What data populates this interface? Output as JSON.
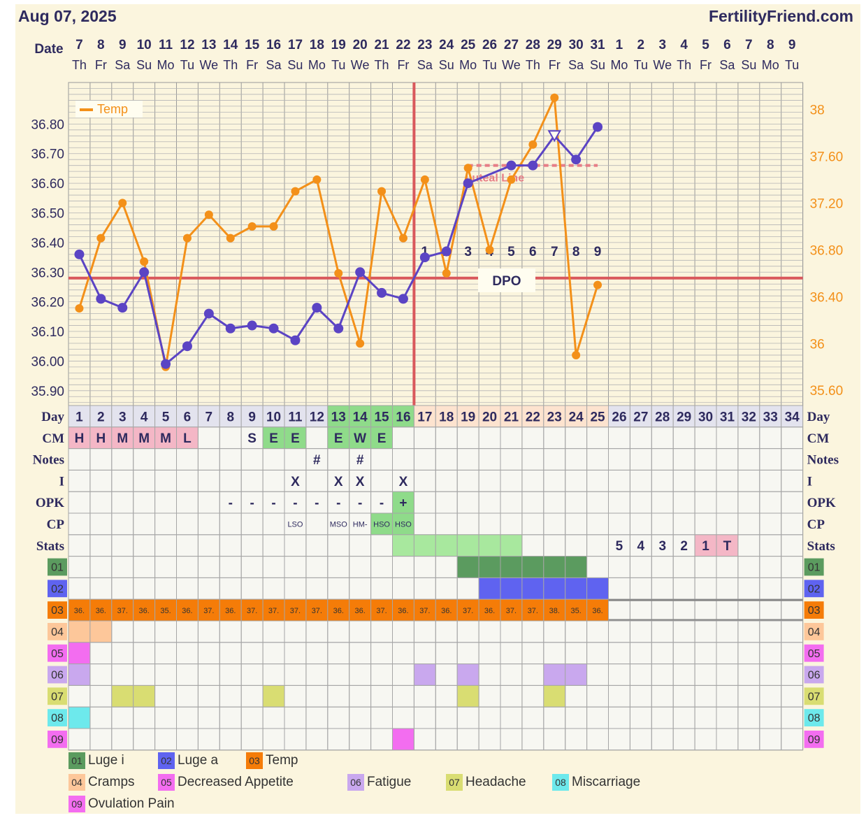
{
  "header": {
    "date": "Aug 07, 2025",
    "site": "FertilityFriend.com"
  },
  "labels": {
    "date": "Date",
    "day": "Day",
    "cm": "CM",
    "notes": "Notes",
    "i": "I",
    "opk": "OPK",
    "cp": "CP",
    "stats": "Stats",
    "dpo": "DPO",
    "coverline": "Luteal Line"
  },
  "dates": [
    "7",
    "8",
    "9",
    "10",
    "11",
    "12",
    "13",
    "14",
    "15",
    "16",
    "17",
    "18",
    "19",
    "20",
    "21",
    "22",
    "23",
    "24",
    "25",
    "26",
    "27",
    "28",
    "29",
    "30",
    "31",
    "1",
    "2",
    "3",
    "4",
    "5",
    "6",
    "7",
    "8",
    "9"
  ],
  "weekdays": [
    "Th",
    "Fr",
    "Sa",
    "Su",
    "Mo",
    "Tu",
    "We",
    "Th",
    "Fr",
    "Sa",
    "Su",
    "Mo",
    "Tu",
    "We",
    "Th",
    "Fr",
    "Sa",
    "Su",
    "Mo",
    "Tu",
    "We",
    "Th",
    "Fr",
    "Sa",
    "Su",
    "Mo",
    "Tu",
    "We",
    "Th",
    "Fr",
    "Sa",
    "Su",
    "Mo",
    "Tu"
  ],
  "chart_data": {
    "type": "line",
    "x_label": "Day",
    "x": [
      1,
      2,
      3,
      4,
      5,
      6,
      7,
      8,
      9,
      10,
      11,
      12,
      13,
      14,
      15,
      16,
      17,
      18,
      19,
      20,
      21,
      22,
      23,
      24,
      25
    ],
    "left_axis": {
      "ticks": [
        "36.80",
        "36.70",
        "36.60",
        "36.50",
        "36.40",
        "36.30",
        "36.20",
        "36.10",
        "36.00",
        "35.90"
      ],
      "ylim": [
        35.85,
        36.94
      ]
    },
    "right_axis": {
      "ticks": [
        "38",
        "37.60",
        "37.20",
        "36.80",
        "36.40",
        "36",
        "35.60"
      ],
      "ylim": [
        35.47,
        38.23
      ]
    },
    "series": [
      {
        "name": "Temp",
        "color": "#f39019",
        "axis": "right",
        "values": [
          36.3,
          36.9,
          37.2,
          36.7,
          35.8,
          36.9,
          37.1,
          36.9,
          37.0,
          37.0,
          37.3,
          37.4,
          36.6,
          36.0,
          37.3,
          36.9,
          37.4,
          36.6,
          37.5,
          36.8,
          37.4,
          37.7,
          38.1,
          35.9,
          36.5
        ]
      },
      {
        "color": "#5b44c4",
        "axis": "left",
        "values": [
          36.36,
          36.21,
          36.18,
          36.3,
          35.99,
          36.05,
          36.16,
          36.11,
          36.12,
          36.11,
          36.07,
          36.18,
          36.11,
          36.3,
          36.23,
          36.21,
          36.35,
          36.37,
          36.6,
          null,
          36.66,
          36.66,
          36.76,
          36.68,
          36.79
        ]
      }
    ],
    "open_marker_day": 23,
    "coverline": 36.28,
    "ovulation_day": 16,
    "luteal_line": {
      "value": 36.66,
      "from_day": 19,
      "to_day": 25
    },
    "dpo": [
      "1",
      "2",
      "3",
      "4",
      "5",
      "6",
      "7",
      "8",
      "9"
    ],
    "dpo_start_day": 17,
    "legend_position": "top-left"
  },
  "days": [
    "1",
    "2",
    "3",
    "4",
    "5",
    "6",
    "7",
    "8",
    "9",
    "10",
    "11",
    "12",
    "13",
    "14",
    "15",
    "16",
    "17",
    "18",
    "19",
    "20",
    "21",
    "22",
    "23",
    "24",
    "25",
    "26",
    "27",
    "28",
    "29",
    "30",
    "31",
    "32",
    "33",
    "34"
  ],
  "cm": {
    "1": "H",
    "2": "H",
    "3": "M",
    "4": "M",
    "5": "M",
    "6": "L",
    "9": "S",
    "10": "E",
    "11": "E",
    "13": "E",
    "14": "W",
    "15": "E"
  },
  "notes": {
    "12": "#",
    "14": "#"
  },
  "intercourse": {
    "11": "X",
    "13": "X",
    "14": "X",
    "16": "X"
  },
  "opk": {
    "8": "-",
    "9": "-",
    "10": "-",
    "11": "-",
    "12": "-",
    "13": "-",
    "14": "-",
    "15": "-",
    "16": "+"
  },
  "cp": {
    "11": "LSO",
    "13": "MSO",
    "14": "HM-",
    "15": "HSO",
    "16": "HSO"
  },
  "stats": {
    "26": "5",
    "27": "4",
    "28": "3",
    "29": "2",
    "30": "1",
    "31": "T"
  },
  "temp_row": [
    "36.",
    "36.",
    "37.",
    "36.",
    "35.",
    "36.",
    "37.",
    "36.",
    "37.",
    "37.",
    "37.",
    "37.",
    "36.",
    "36.",
    "37.",
    "36.",
    "37.",
    "36.",
    "37.",
    "36.",
    "37.",
    "37.",
    "38.",
    "35.",
    "36."
  ],
  "symptom_rows": [
    {
      "code": "01",
      "color": "#5b9b5f",
      "days": [
        19,
        20,
        21,
        22,
        23,
        24
      ]
    },
    {
      "code": "02",
      "color": "#5f63f0",
      "days": [
        20,
        21,
        22,
        23,
        24,
        25
      ]
    },
    {
      "code": "03",
      "color": "#f57c08",
      "days": []
    },
    {
      "code": "04",
      "color": "#fdc79a",
      "days": [
        1,
        2
      ]
    },
    {
      "code": "05",
      "color": "#f36df0",
      "days": [
        1
      ]
    },
    {
      "code": "06",
      "color": "#c9a8ee",
      "days": [
        1,
        17,
        19,
        23,
        24
      ]
    },
    {
      "code": "07",
      "color": "#d9dd72",
      "days": [
        3,
        4,
        10,
        19,
        23
      ]
    },
    {
      "code": "08",
      "color": "#6de9ec",
      "days": [
        1
      ]
    },
    {
      "code": "09",
      "color": "#f36df0",
      "days": [
        16
      ]
    }
  ],
  "legend": [
    {
      "code": "01",
      "label": "Luge i",
      "color": "#5b9b5f"
    },
    {
      "code": "02",
      "label": "Luge a",
      "color": "#5f63f0"
    },
    {
      "code": "03",
      "label": "Temp",
      "color": "#f57c08"
    },
    {
      "code": "04",
      "label": "Cramps",
      "color": "#fdc79a"
    },
    {
      "code": "05",
      "label": "Decreased Appetite",
      "color": "#f36df0"
    },
    {
      "code": "06",
      "label": "Fatigue",
      "color": "#c9a8ee"
    },
    {
      "code": "07",
      "label": "Headache",
      "color": "#d9dd72"
    },
    {
      "code": "08",
      "label": "Miscarriage",
      "color": "#6de9ec"
    },
    {
      "code": "09",
      "label": "Ovulation Pain",
      "color": "#f36df0"
    }
  ]
}
